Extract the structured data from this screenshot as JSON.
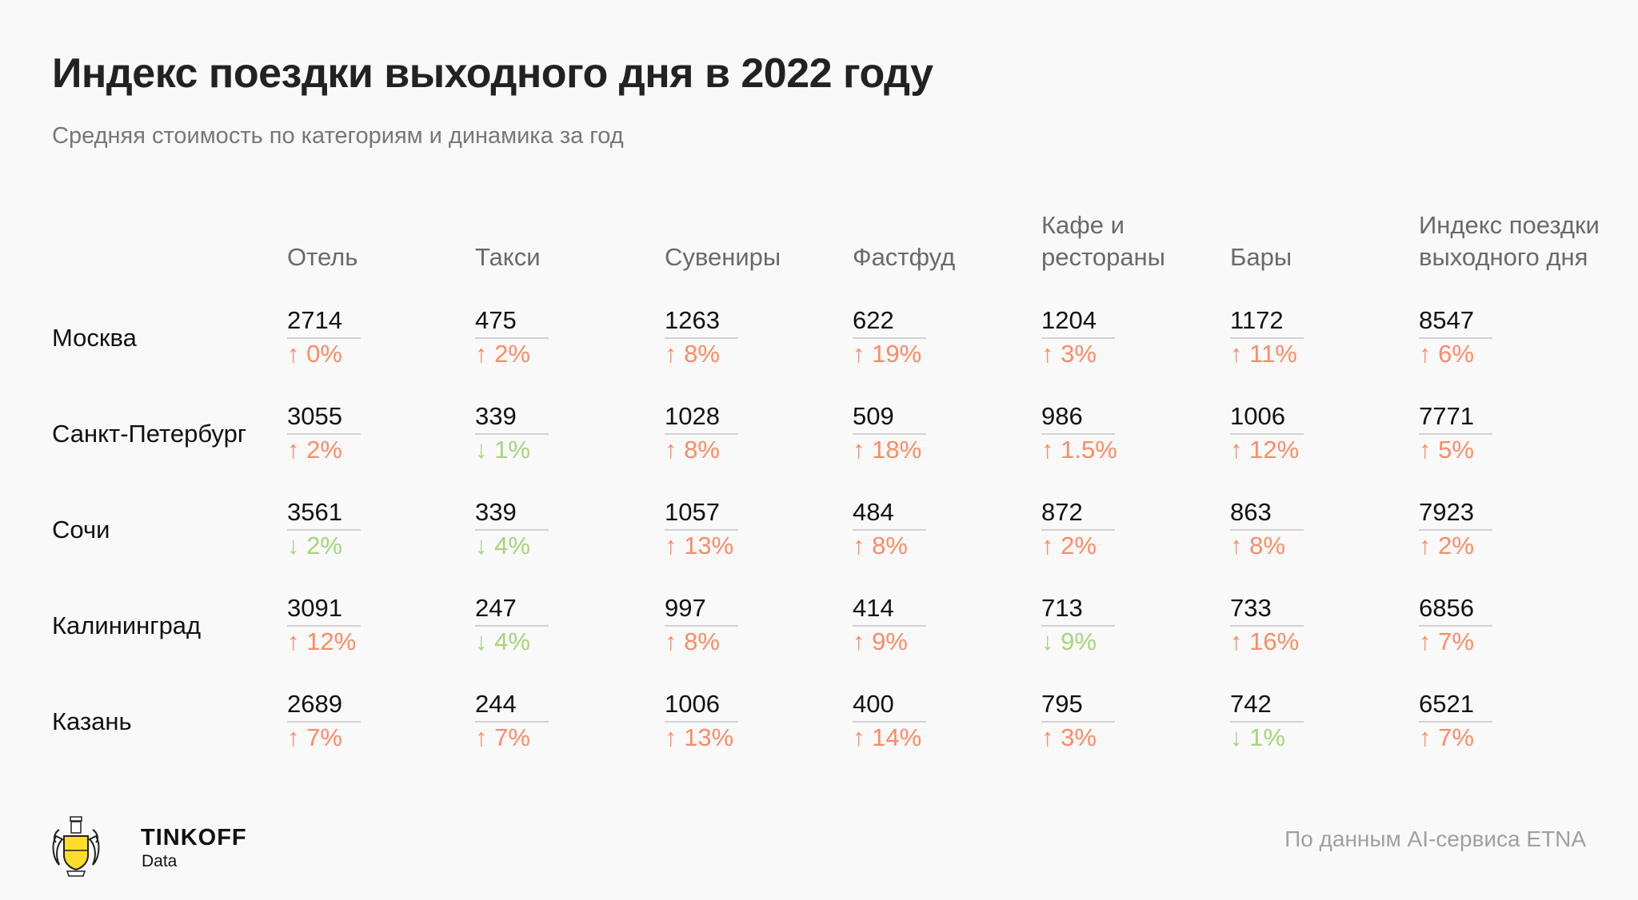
{
  "title": "Индекс поездки выходного дня в 2022 году",
  "subtitle": "Средняя стоимость по категориям и динамика за год",
  "columns": [
    "Отель",
    "Такси",
    "Сувениры",
    "Фастфуд",
    "Кафе и рестораны",
    "Бары",
    "Индекс поездки выходного дня"
  ],
  "rows": [
    {
      "city": "Москва",
      "cells": [
        {
          "v": "2714",
          "c": "↑ 0%",
          "d": "up"
        },
        {
          "v": "475",
          "c": "↑ 2%",
          "d": "up"
        },
        {
          "v": "1263",
          "c": "↑ 8%",
          "d": "up"
        },
        {
          "v": "622",
          "c": "↑ 19%",
          "d": "up"
        },
        {
          "v": "1204",
          "c": "↑ 3%",
          "d": "up"
        },
        {
          "v": "1172",
          "c": "↑ 11%",
          "d": "up"
        },
        {
          "v": "8547",
          "c": "↑ 6%",
          "d": "up"
        }
      ]
    },
    {
      "city": "Санкт-Петербург",
      "cells": [
        {
          "v": "3055",
          "c": "↑ 2%",
          "d": "up"
        },
        {
          "v": "339",
          "c": "↓ 1%",
          "d": "down"
        },
        {
          "v": "1028",
          "c": "↑ 8%",
          "d": "up"
        },
        {
          "v": "509",
          "c": "↑ 18%",
          "d": "up"
        },
        {
          "v": "986",
          "c": "↑ 1.5%",
          "d": "up"
        },
        {
          "v": "1006",
          "c": "↑ 12%",
          "d": "up"
        },
        {
          "v": "7771",
          "c": "↑ 5%",
          "d": "up"
        }
      ]
    },
    {
      "city": "Сочи",
      "cells": [
        {
          "v": "3561",
          "c": "↓ 2%",
          "d": "down"
        },
        {
          "v": "339",
          "c": "↓ 4%",
          "d": "down"
        },
        {
          "v": "1057",
          "c": "↑ 13%",
          "d": "up"
        },
        {
          "v": "484",
          "c": "↑ 8%",
          "d": "up"
        },
        {
          "v": "872",
          "c": "↑ 2%",
          "d": "up"
        },
        {
          "v": "863",
          "c": "↑ 8%",
          "d": "up"
        },
        {
          "v": "7923",
          "c": "↑ 2%",
          "d": "up"
        }
      ]
    },
    {
      "city": "Калининград",
      "cells": [
        {
          "v": "3091",
          "c": "↑ 12%",
          "d": "up"
        },
        {
          "v": "247",
          "c": "↓ 4%",
          "d": "down"
        },
        {
          "v": "997",
          "c": "↑ 8%",
          "d": "up"
        },
        {
          "v": "414",
          "c": "↑ 9%",
          "d": "up"
        },
        {
          "v": "713",
          "c": "↓ 9%",
          "d": "down"
        },
        {
          "v": "733",
          "c": "↑ 16%",
          "d": "up"
        },
        {
          "v": "6856",
          "c": "↑ 7%",
          "d": "up"
        }
      ]
    },
    {
      "city": "Казань",
      "cells": [
        {
          "v": "2689",
          "c": "↑ 7%",
          "d": "up"
        },
        {
          "v": "244",
          "c": "↑ 7%",
          "d": "up"
        },
        {
          "v": "1006",
          "c": "↑ 13%",
          "d": "up"
        },
        {
          "v": "400",
          "c": "↑ 14%",
          "d": "up"
        },
        {
          "v": "795",
          "c": "↑ 3%",
          "d": "up"
        },
        {
          "v": "742",
          "c": "↓ 1%",
          "d": "down"
        },
        {
          "v": "6521",
          "c": "↑ 7%",
          "d": "up"
        }
      ]
    }
  ],
  "footer": {
    "brand": "TINKOFF",
    "brand_sub": "Data",
    "source": "По данным AI-сервиса ETNA"
  },
  "colors": {
    "up": "#ff8a65",
    "down": "#a6d57c",
    "logo_yellow": "#ffdd2d"
  }
}
